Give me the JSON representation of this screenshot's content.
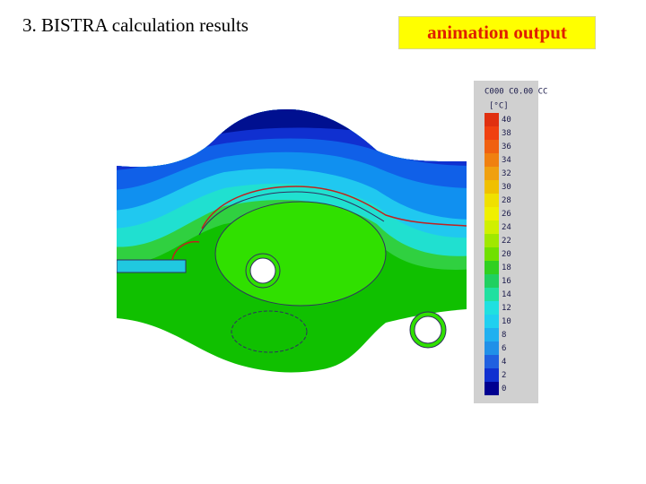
{
  "title": "3. BISTRA calculation results",
  "button": "animation output",
  "legend": {
    "header": "C000 C0.00 CC",
    "unit": "[°C]",
    "items": [
      {
        "label": "40",
        "color": "#e03010"
      },
      {
        "label": "38",
        "color": "#f04010"
      },
      {
        "label": "36",
        "color": "#f06010"
      },
      {
        "label": "34",
        "color": "#f08010"
      },
      {
        "label": "32",
        "color": "#f0a010"
      },
      {
        "label": "30",
        "color": "#f0c000"
      },
      {
        "label": "28",
        "color": "#f0e000"
      },
      {
        "label": "26",
        "color": "#f0f000"
      },
      {
        "label": "24",
        "color": "#d0f000"
      },
      {
        "label": "22",
        "color": "#a0e800"
      },
      {
        "label": "20",
        "color": "#70e000"
      },
      {
        "label": "18",
        "color": "#30d020"
      },
      {
        "label": "16",
        "color": "#20d060"
      },
      {
        "label": "14",
        "color": "#20e0a0"
      },
      {
        "label": "12",
        "color": "#20e0e0"
      },
      {
        "label": "10",
        "color": "#20d0f0"
      },
      {
        "label": "8",
        "color": "#20b0f0"
      },
      {
        "label": "6",
        "color": "#2090e8"
      },
      {
        "label": "4",
        "color": "#2060e0"
      },
      {
        "label": "2",
        "color": "#1030d0"
      },
      {
        "label": "0",
        "color": "#000090"
      }
    ]
  }
}
